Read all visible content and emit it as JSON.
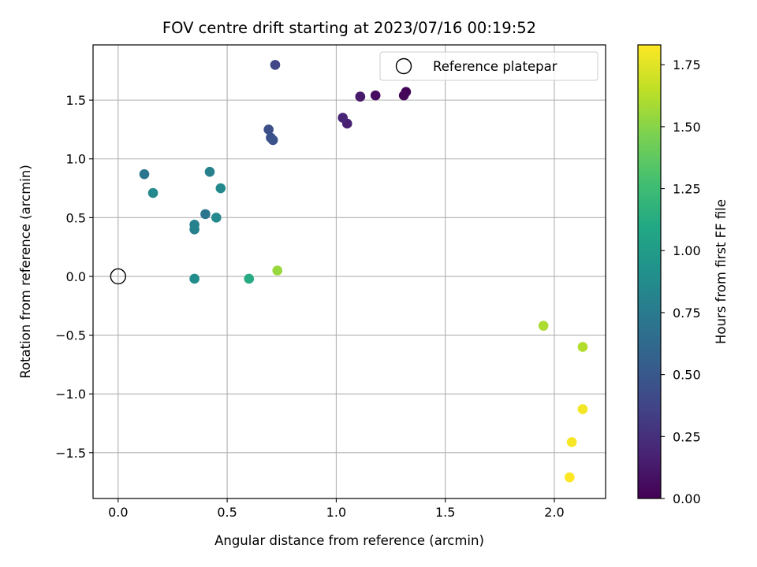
{
  "chart_data": {
    "type": "scatter",
    "title": "FOV centre drift starting at 2023/07/16 00:19:52",
    "xlabel": "Angular distance from reference (arcmin)",
    "ylabel": "Rotation from reference (arcmin)",
    "xlim": [
      -0.115,
      2.235
    ],
    "ylim": [
      -1.89,
      1.97
    ],
    "xticks": [
      0.0,
      0.5,
      1.0,
      1.5,
      2.0
    ],
    "xtick_labels": [
      "0.0",
      "0.5",
      "1.0",
      "1.5",
      "2.0"
    ],
    "yticks": [
      -1.5,
      -1.0,
      -0.5,
      0.0,
      0.5,
      1.0,
      1.5
    ],
    "ytick_labels": [
      "−1.5",
      "−1.0",
      "−0.5",
      "0.0",
      "0.5",
      "1.0",
      "1.5"
    ],
    "grid": true,
    "legend": {
      "placement": "top-right",
      "entries": [
        "Reference platepar"
      ]
    },
    "reference_point": {
      "x": 0.0,
      "y": 0.0
    },
    "colorbar": {
      "label": "Hours from first FF file",
      "colormap": "viridis",
      "range": [
        0.0,
        1.83
      ],
      "ticks": [
        0.0,
        0.25,
        0.5,
        0.75,
        1.0,
        1.25,
        1.5,
        1.75
      ],
      "tick_labels": [
        "0.00",
        "0.25",
        "0.50",
        "0.75",
        "1.00",
        "1.25",
        "1.50",
        "1.75"
      ]
    },
    "points": [
      {
        "x": 1.32,
        "y": 1.57,
        "hours": 0.02
      },
      {
        "x": 1.31,
        "y": 1.54,
        "hours": 0.03
      },
      {
        "x": 1.18,
        "y": 1.54,
        "hours": 0.06
      },
      {
        "x": 1.11,
        "y": 1.53,
        "hours": 0.1
      },
      {
        "x": 1.11,
        "y": 1.53,
        "hours": 0.13
      },
      {
        "x": 1.05,
        "y": 1.3,
        "hours": 0.16
      },
      {
        "x": 1.03,
        "y": 1.35,
        "hours": 0.19
      },
      {
        "x": 0.72,
        "y": 1.8,
        "hours": 0.38
      },
      {
        "x": 0.69,
        "y": 1.25,
        "hours": 0.44
      },
      {
        "x": 0.7,
        "y": 1.18,
        "hours": 0.45
      },
      {
        "x": 0.71,
        "y": 1.16,
        "hours": 0.47
      },
      {
        "x": 0.12,
        "y": 0.87,
        "hours": 0.71
      },
      {
        "x": 0.4,
        "y": 0.53,
        "hours": 0.72
      },
      {
        "x": 0.35,
        "y": 0.44,
        "hours": 0.78
      },
      {
        "x": 0.35,
        "y": 0.4,
        "hours": 0.8
      },
      {
        "x": 0.42,
        "y": 0.89,
        "hours": 0.8
      },
      {
        "x": 0.16,
        "y": 0.71,
        "hours": 0.85
      },
      {
        "x": 0.45,
        "y": 0.5,
        "hours": 0.86
      },
      {
        "x": 0.47,
        "y": 0.75,
        "hours": 0.86
      },
      {
        "x": 0.35,
        "y": -0.02,
        "hours": 0.88
      },
      {
        "x": 0.6,
        "y": -0.02,
        "hours": 1.12
      },
      {
        "x": 0.73,
        "y": 0.05,
        "hours": 1.55
      },
      {
        "x": 1.95,
        "y": -0.42,
        "hours": 1.6
      },
      {
        "x": 2.13,
        "y": -0.6,
        "hours": 1.62
      },
      {
        "x": 2.13,
        "y": -1.13,
        "hours": 1.8
      },
      {
        "x": 2.08,
        "y": -1.41,
        "hours": 1.81
      },
      {
        "x": 2.07,
        "y": -1.71,
        "hours": 1.83
      }
    ]
  }
}
